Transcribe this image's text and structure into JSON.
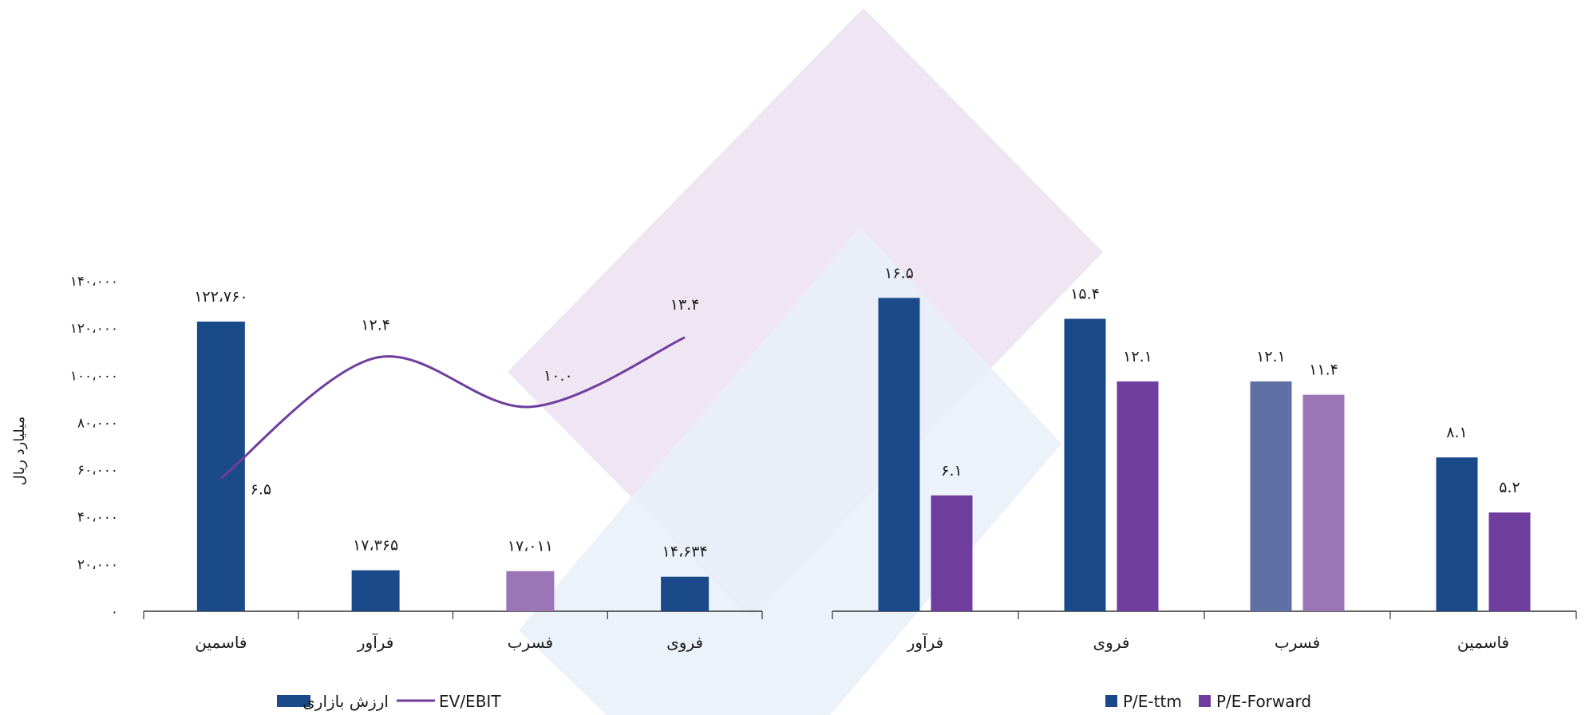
{
  "chart_data": [
    {
      "type": "bar",
      "categories": [
        "فاسمین",
        "فرآور",
        "فسرب",
        "فروی"
      ],
      "ylabel": "میلیارد ریال",
      "ylim": [
        0,
        140000
      ],
      "yticks": [
        0,
        20000,
        40000,
        60000,
        80000,
        100000,
        120000,
        140000
      ],
      "ytick_labels": [
        "۰",
        "۲۰،۰۰۰",
        "۴۰،۰۰۰",
        "۶۰،۰۰۰",
        "۸۰،۰۰۰",
        "۱۰۰،۰۰۰",
        "۱۲۰،۰۰۰",
        "۱۴۰،۰۰۰"
      ],
      "grid": false,
      "legend_position": "bottom",
      "series": [
        {
          "name": "ارزش بازاری",
          "kind": "bar",
          "values": [
            122760,
            17365,
            17011,
            14634
          ],
          "labels": [
            "۱۲۲،۷۶۰",
            "۱۷،۳۶۵",
            "۱۷،۰۱۱",
            "۱۴،۶۳۴"
          ],
          "colors": [
            "#1a4a8a",
            "#1a4a8a",
            "#9b75b5",
            "#1a4a8a"
          ]
        },
        {
          "name": "EV/EBIT",
          "kind": "line",
          "values": [
            6.5,
            12.4,
            10.0,
            13.4
          ],
          "labels": [
            "۶.۵",
            "۱۲.۴",
            "۱۰.۰",
            "۱۳.۴"
          ],
          "color": "#6f3d9e"
        }
      ]
    },
    {
      "type": "bar",
      "categories": [
        "فرآور",
        "فروی",
        "فسرب",
        "فاسمین"
      ],
      "grid": false,
      "legend_position": "bottom",
      "series": [
        {
          "name": "P/E-ttm",
          "values": [
            16.5,
            15.4,
            12.1,
            8.1
          ],
          "labels": [
            "۱۶.۵",
            "۱۵.۴",
            "۱۲.۱",
            "۸.۱"
          ],
          "colors": [
            "#1a4a8a",
            "#1a4a8a",
            "#5f70a4",
            "#1a4a8a"
          ]
        },
        {
          "name": "P/E-Forward",
          "values": [
            6.1,
            12.1,
            11.4,
            5.2
          ],
          "labels": [
            "۶.۱",
            "۱۲.۱",
            "۱۱.۴",
            "۵.۲"
          ],
          "colors": [
            "#6f3d9e",
            "#6f3d9e",
            "#9b75b5",
            "#6f3d9e"
          ]
        }
      ]
    }
  ]
}
